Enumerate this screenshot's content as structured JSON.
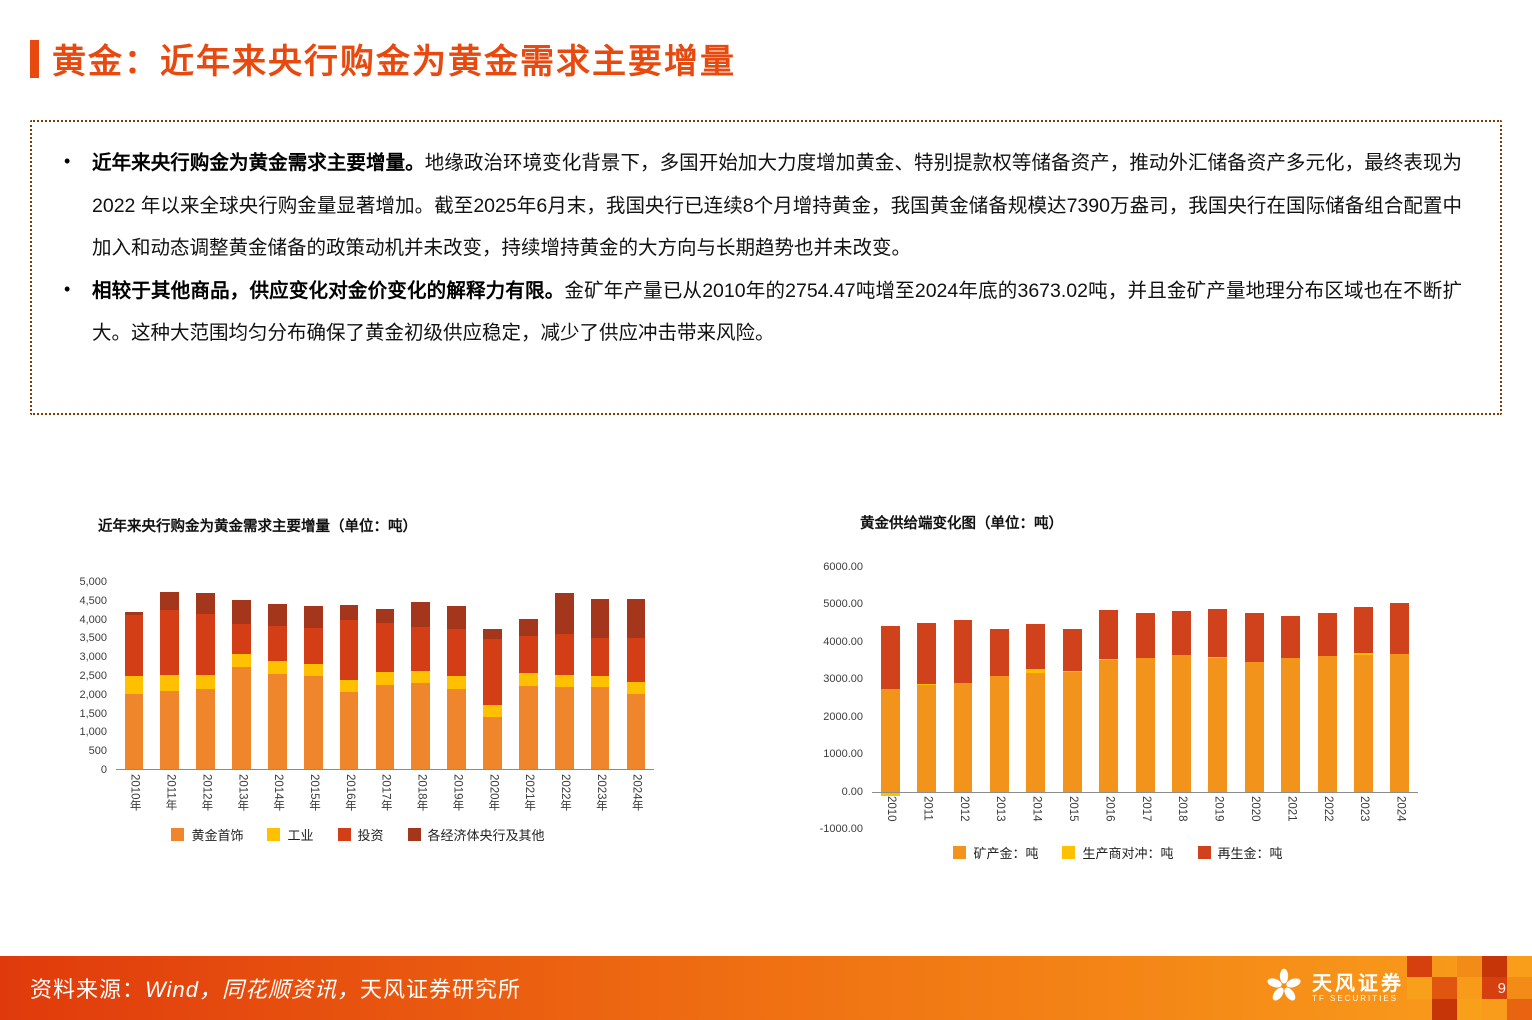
{
  "page": {
    "title": "黄金：近年来央行购金为黄金需求主要增量",
    "number": "9"
  },
  "colors": {
    "accent": "#E8490F",
    "box_border": "#7C3D00",
    "footer_gradient_left": "#E03A0C",
    "footer_gradient_right": "#F99E1B"
  },
  "summary": {
    "bullets": [
      {
        "marker": "•",
        "lead": "近年来央行购金为黄金需求主要增量。",
        "body": "地缘政治环境变化背景下，多国开始加大力度增加黄金、特别提款权等储备资产，推动外汇储备资产多元化，最终表现为 2022 年以来全球央行购金量显著增加。截至2025年6月末，我国央行已连续8个月增持黄金，我国黄金储备规模达7390万盎司，我国央行在国际储备组合配置中加入和动态调整黄金储备的政策动机并未改变，持续增持黄金的大方向与长期趋势也并未改变。"
      },
      {
        "marker": "•",
        "lead": "相较于其他商品，供应变化对金价变化的解释力有限。",
        "body": "金矿年产量已从2010年的2754.47吨增至2024年底的3673.02吨，并且金矿产量地理分布区域也在不断扩大。这种大范围均匀分布确保了黄金初级供应稳定，减少了供应冲击带来风险。"
      }
    ]
  },
  "chart_data": [
    {
      "type": "bar",
      "stacked": true,
      "title": "近年来央行购金为黄金需求主要增量（单位：吨）",
      "categories": [
        "2010年",
        "2011年",
        "2012年",
        "2013年",
        "2014年",
        "2015年",
        "2016年",
        "2017年",
        "2018年",
        "2019年",
        "2020年",
        "2021年",
        "2022年",
        "2023年",
        "2024年"
      ],
      "series": [
        {
          "name": "黄金首饰",
          "color": "#F0862B",
          "values": [
            2017,
            2091,
            2135,
            2726,
            2544,
            2479,
            2069,
            2257,
            2290,
            2152,
            1401,
            2229,
            2195,
            2190,
            2004
          ]
        },
        {
          "name": "工业",
          "color": "#FFC000",
          "values": [
            466,
            428,
            382,
            356,
            349,
            332,
            323,
            333,
            335,
            326,
            302,
            330,
            309,
            298,
            326
          ]
        },
        {
          "name": "投资",
          "color": "#D43E16",
          "values": [
            1639,
            1735,
            1628,
            804,
            918,
            957,
            1595,
            1316,
            1173,
            1275,
            1773,
            1007,
            1113,
            1010,
            1180
          ]
        },
        {
          "name": "各经济体央行及其他",
          "color": "#A4371B",
          "values": [
            79,
            481,
            569,
            629,
            601,
            580,
            395,
            379,
            656,
            605,
            255,
            450,
            1082,
            1037,
            1045
          ]
        }
      ],
      "ylim": [
        0,
        5000
      ],
      "ytick_labels": [
        "5,000",
        "4,500",
        "4,000",
        "3,500",
        "3,000",
        "2,500",
        "2,000",
        "1,500",
        "1,000",
        "500",
        "0"
      ],
      "legend_position": "bottom",
      "gridlines": false
    },
    {
      "type": "bar",
      "stacked": true,
      "title": "黄金供给端变化图（单位：吨）",
      "categories": [
        "2010",
        "2011",
        "2012",
        "2013",
        "2014",
        "2015",
        "2016",
        "2017",
        "2018",
        "2019",
        "2020",
        "2021",
        "2022",
        "2023",
        "2024"
      ],
      "series": [
        {
          "name": "矿产金：吨",
          "color": "#F2941B",
          "values": [
            2754,
            2846,
            2890,
            3077,
            3172,
            3222,
            3510,
            3563,
            3655,
            3597,
            3474,
            3560,
            3625,
            3644,
            3673
          ]
        },
        {
          "name": "生产商对冲：吨",
          "color": "#FFC000",
          "values": [
            -109,
            18,
            -40,
            -28,
            105,
            13,
            38,
            -26,
            -12,
            6,
            -39,
            -25,
            -13,
            64,
            -20
          ]
        },
        {
          "name": "再生金：吨",
          "color": "#D0421B",
          "values": [
            1683,
            1649,
            1691,
            1262,
            1188,
            1121,
            1295,
            1210,
            1178,
            1276,
            1293,
            1136,
            1144,
            1237,
            1370
          ]
        }
      ],
      "ylim": [
        -1000,
        6000
      ],
      "ytick_labels": [
        "6000.00",
        "5000.00",
        "4000.00",
        "3000.00",
        "2000.00",
        "1000.00",
        "0.00",
        "-1000.00"
      ],
      "legend_position": "bottom",
      "gridlines": false
    }
  ],
  "footer": {
    "source_label": "资料来源：",
    "source_wind": "Wind，同花顺资讯，",
    "source_rest": "天风证券研究所",
    "brand_name": "天风证券",
    "brand_sub": "TF SECURITIES"
  }
}
